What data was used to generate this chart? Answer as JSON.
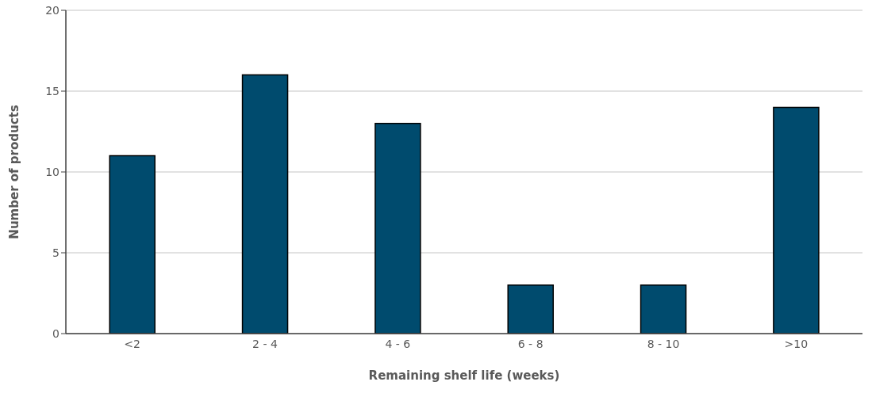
{
  "chart_data": {
    "type": "bar",
    "xlabel": "Remaining shelf life (weeks)",
    "ylabel": "Number of products",
    "categories": [
      "<2",
      "2 - 4",
      "4 - 6",
      "6 - 8",
      "8 - 10",
      ">10"
    ],
    "values": [
      11,
      16,
      13,
      3,
      3,
      14
    ],
    "color": "#004b6e",
    "ylim": [
      0,
      20
    ],
    "yticks": [
      0,
      5,
      10,
      15,
      20
    ],
    "grid": "y"
  }
}
